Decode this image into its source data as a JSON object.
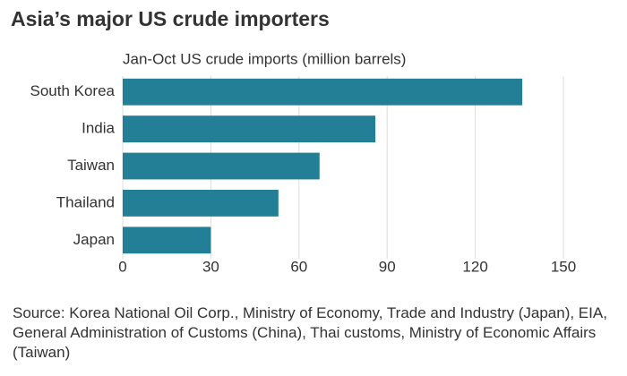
{
  "chart_data": {
    "type": "bar",
    "orientation": "horizontal",
    "title": "Asia’s major US crude importers",
    "subtitle": "Jan-Oct US crude imports (million barrels)",
    "categories": [
      "South Korea",
      "India",
      "Taiwan",
      "Thailand",
      "Japan"
    ],
    "values": [
      136,
      86,
      67,
      53,
      30
    ],
    "color": "#237f95",
    "xlim": [
      0,
      150
    ],
    "xticks": [
      0,
      30,
      60,
      90,
      120,
      150
    ],
    "grid": true,
    "source": "Source: Korea National Oil Corp., Ministry of Economy, Trade and Industry (Japan), EIA, General Administration of Customs (China), Thai customs, Ministry of Economic Affairs (Taiwan)"
  }
}
